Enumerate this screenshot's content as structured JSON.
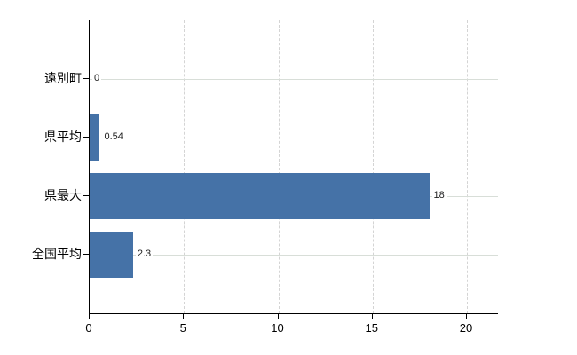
{
  "chart_data": {
    "type": "bar",
    "orientation": "horizontal",
    "title": "",
    "categories": [
      "遠別町",
      "県平均",
      "県最大",
      "全国平均"
    ],
    "values": [
      0,
      0.54,
      18,
      2.3
    ],
    "value_labels": [
      "0",
      "0.54",
      "18",
      "2.3"
    ],
    "xticks": [
      0,
      5,
      10,
      15,
      20
    ],
    "xtick_labels": [
      "0",
      "5",
      "10",
      "15",
      "20"
    ],
    "xlim": [
      0,
      21.6
    ],
    "grid": true,
    "legend": false,
    "colors": {
      "bar": "#4572a7",
      "row_line": "#d8ded8",
      "grid_line": "#d4d4d4",
      "axis": "#000000",
      "value_text": "#222222"
    }
  }
}
